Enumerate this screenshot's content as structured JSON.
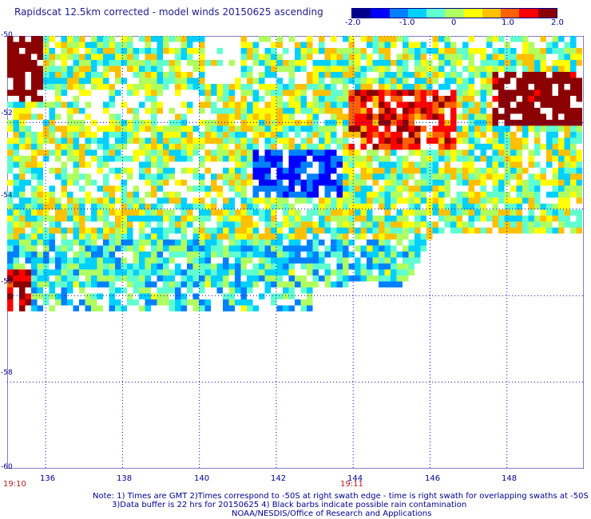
{
  "title": "Rapidscat 12.5km corrected - model winds 20150625 ascending",
  "colorbar": {
    "labels": [
      "-2.0",
      "-1.0",
      "0",
      "1.0",
      "2.0"
    ],
    "range": [
      -2.0,
      2.0
    ],
    "colors": [
      "#00008b",
      "#0000ff",
      "#0080ff",
      "#00d0ff",
      "#60ffd0",
      "#b0ff60",
      "#ffff00",
      "#ffc000",
      "#ff6000",
      "#ff0000",
      "#8b0000"
    ]
  },
  "map": {
    "lat_labels": [
      "-50",
      "-52",
      "-54",
      "-56",
      "-58",
      "-60"
    ],
    "lon_labels": [
      "136",
      "138",
      "140",
      "142",
      "144",
      "146",
      "148"
    ],
    "lat_range": [
      -60,
      -50
    ],
    "lon_range": [
      135.0,
      150.0
    ],
    "grid_lines": "dotted blue"
  },
  "times": {
    "left": "19:10",
    "middle": "19:11"
  },
  "notes": [
    "Note: 1) Times are GMT 2)Times correspond to -50S at right swath edge - time is right swath for overlapping swaths at -50S",
    "3)Data buffer is 22 hrs for 20150625 4) Black barbs indicate possible rain contamination",
    "NOAA/NESDIS/Office of Research and Applications"
  ]
}
